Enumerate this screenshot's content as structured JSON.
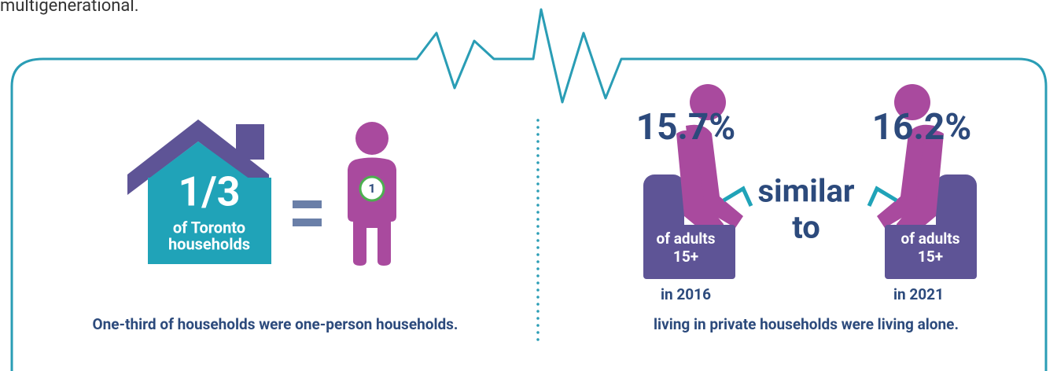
{
  "intro_fragment": "multigenerational.",
  "left": {
    "fraction": "1/3",
    "house_label": [
      "of Toronto",
      "households"
    ],
    "person_badge": "1",
    "caption": "One-third of households were one-person households."
  },
  "right": {
    "stats": [
      {
        "value": "15.7%",
        "chair_label": [
          "of adults",
          "15+"
        ],
        "year": "in 2016"
      },
      {
        "value": "16.2%",
        "chair_label": [
          "of adults",
          "15+"
        ],
        "year": "in 2021"
      }
    ],
    "connector": [
      "similar",
      "to"
    ],
    "caption": "living in private households were living alone."
  }
}
